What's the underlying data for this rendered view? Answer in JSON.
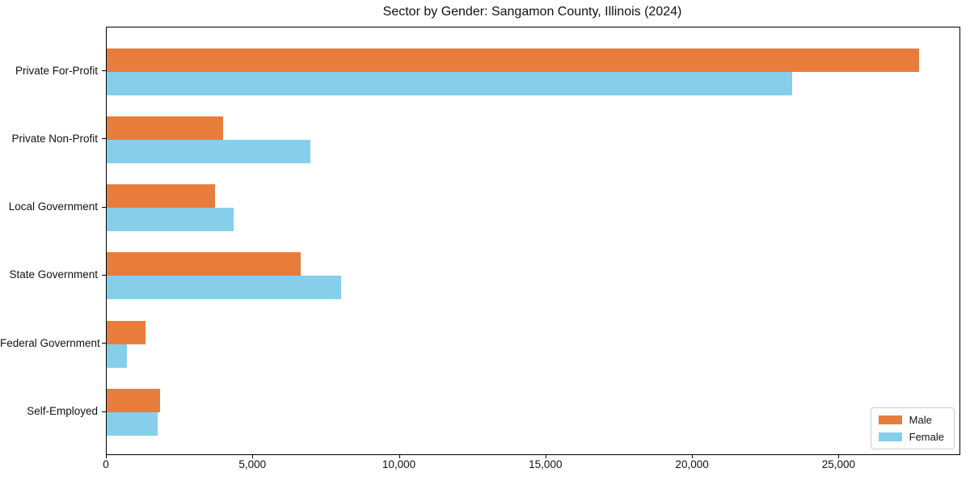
{
  "chart_data": {
    "type": "bar",
    "orientation": "horizontal",
    "title": "Sector by Gender: Sangamon County, Illinois (2024)",
    "categories": [
      "Private For-Profit",
      "Private Non-Profit",
      "Local Government",
      "State Government",
      "Federal Government",
      "Self-Employed"
    ],
    "series": [
      {
        "name": "Male",
        "color": "#e87d3b",
        "values": [
          27720,
          3980,
          3700,
          6620,
          1320,
          1810
        ]
      },
      {
        "name": "Female",
        "color": "#87ceeb",
        "values": [
          23400,
          6960,
          4330,
          8000,
          690,
          1740
        ]
      }
    ],
    "xlim": [
      0,
      29100
    ],
    "xticks": [
      0,
      5000,
      10000,
      15000,
      20000,
      25000
    ],
    "xtick_labels": [
      "0",
      "5,000",
      "10,000",
      "15,000",
      "20,000",
      "25,000"
    ],
    "ylabel": "",
    "xlabel": "",
    "grid": false,
    "legend": {
      "position": "lower right",
      "entries": [
        "Male",
        "Female"
      ]
    },
    "colors": {
      "axis": "#000000",
      "text": "#111111",
      "legend_border": "#cccccc",
      "plot_background": "#ffffff"
    }
  }
}
